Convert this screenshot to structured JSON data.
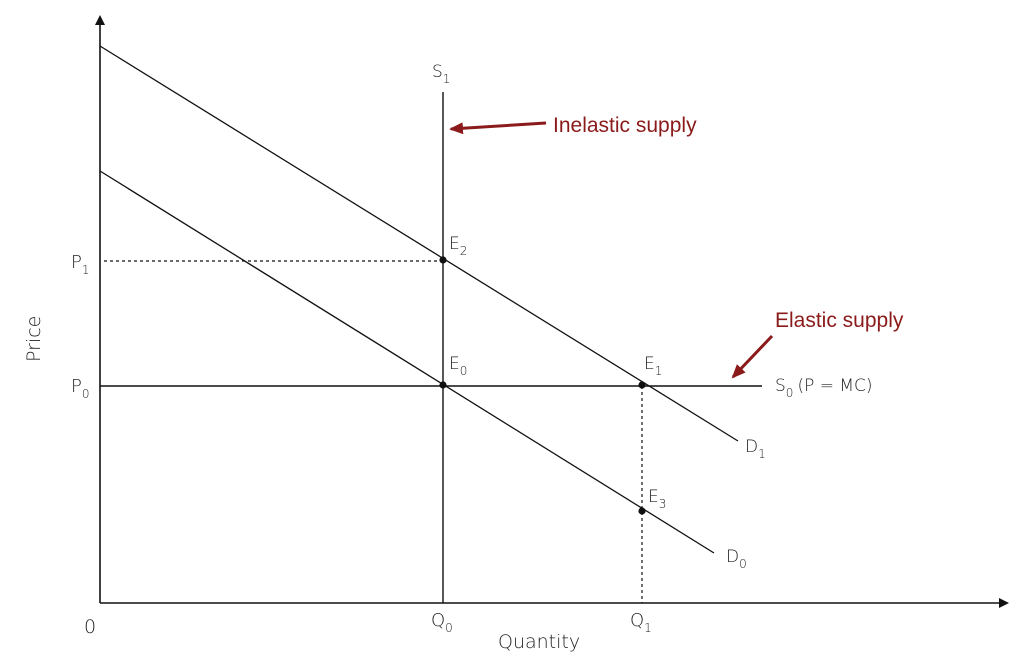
{
  "axes": {
    "origin_label": "0",
    "x_label": "Quantity",
    "y_label": "Price"
  },
  "ticks": {
    "p0": {
      "base": "P",
      "sub": "0"
    },
    "p1": {
      "base": "P",
      "sub": "1"
    },
    "q0": {
      "base": "Q",
      "sub": "0"
    },
    "q1": {
      "base": "Q",
      "sub": "1"
    }
  },
  "curves": {
    "s1": {
      "base": "S",
      "sub": "1"
    },
    "s0": {
      "base": "S",
      "sub": "0",
      "suffix": "(P = MC)"
    },
    "d1": {
      "base": "D",
      "sub": "1"
    },
    "d0": {
      "base": "D",
      "sub": "0"
    }
  },
  "points": {
    "e0": {
      "base": "E",
      "sub": "0"
    },
    "e1": {
      "base": "E",
      "sub": "1"
    },
    "e2": {
      "base": "E",
      "sub": "2"
    },
    "e3": {
      "base": "E",
      "sub": "3"
    }
  },
  "annotations": {
    "inelastic": "Inelastic supply",
    "elastic": "Elastic supply"
  },
  "colors": {
    "annotation": "#8b1a1a",
    "line": "#111111"
  }
}
